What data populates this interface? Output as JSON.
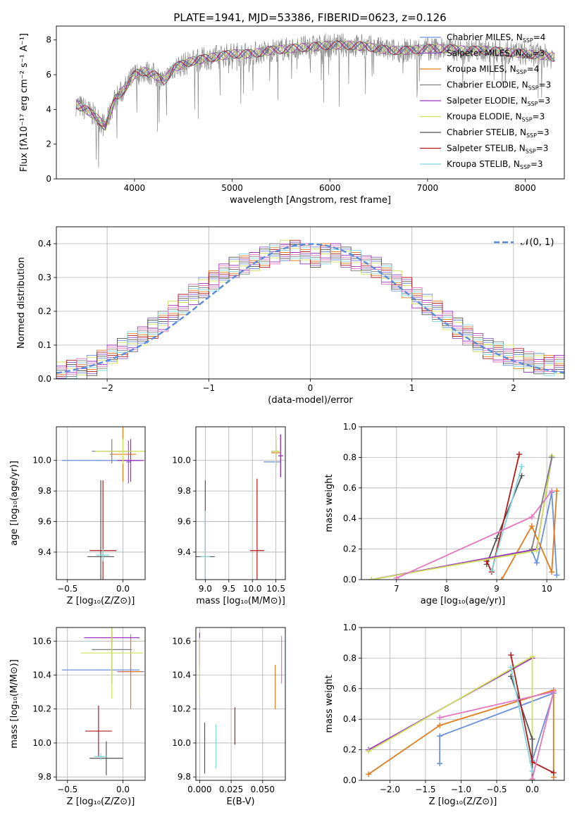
{
  "figure": {
    "title": "PLATE=1941, MJD=53386, FIBERID=0623, z=0.126"
  },
  "colors": {
    "Chabrier MILES": "#6a8fdc",
    "Salpeter MILES": "#8f5cc8",
    "Kroupa MILES": "#e07b1e",
    "Chabrier ELODIE": "#7f7f7f",
    "Salpeter ELODIE": "#9b30c0",
    "Kroupa ELODIE": "#cfe05a",
    "Chabrier STELIB": "#555555",
    "Salpeter STELIB": "#b11a1a",
    "Kroupa STELIB": "#7fd6de",
    "pink": "#e377c2",
    "normal_curve": "#5a8ad8"
  },
  "chart_data": [
    {
      "id": "spectrum",
      "type": "line",
      "xlabel": "wavelength [Angstrom, rest frame]",
      "ylabel": "Flux [fλ10⁻¹⁷ erg cm⁻² s⁻¹ A⁻¹]",
      "xlim": [
        3200,
        8400
      ],
      "ylim": [
        0,
        8.8
      ],
      "xticks": [
        "4000",
        "5000",
        "6000",
        "7000",
        "8000"
      ],
      "yticks": [
        "0",
        "2",
        "4",
        "6",
        "8"
      ],
      "legend_position": "upper-right",
      "legend": [
        {
          "label": "Chabrier MILES, N",
          "sub": "SSP",
          "tail": "=4"
        },
        {
          "label": "Salpeter MILES, N",
          "sub": "SSP",
          "tail": "=3"
        },
        {
          "label": "Kroupa MILES, N",
          "sub": "SSP",
          "tail": "=4"
        },
        {
          "label": "Chabrier ELODIE, N",
          "sub": "SSP",
          "tail": "=3"
        },
        {
          "label": "Salpeter ELODIE, N",
          "sub": "SSP",
          "tail": "=3"
        },
        {
          "label": "Kroupa ELODIE, N",
          "sub": "SSP",
          "tail": "=3"
        },
        {
          "label": "Chabrier STELIB, N",
          "sub": "SSP",
          "tail": "=3"
        },
        {
          "label": "Salpeter STELIB, N",
          "sub": "SSP",
          "tail": "=3"
        },
        {
          "label": "Kroupa STELIB, N",
          "sub": "SSP",
          "tail": "=3"
        }
      ],
      "data_series": [
        {
          "x": [
            3400,
            3500,
            3600,
            3700,
            3800,
            3900,
            4000,
            4100,
            4200,
            4300,
            4400,
            4600,
            4800,
            5000,
            5200,
            5400,
            5600,
            5800,
            6000,
            6200,
            6400,
            6600,
            6800,
            7000,
            7200,
            7400,
            7600,
            7800,
            8000,
            8200,
            8300
          ],
          "y": [
            4.3,
            4.0,
            3.6,
            3.0,
            4.6,
            5.2,
            6.0,
            6.2,
            6.0,
            5.6,
            6.4,
            6.8,
            7.0,
            7.2,
            7.2,
            7.4,
            7.5,
            7.6,
            7.7,
            7.7,
            7.6,
            7.4,
            7.4,
            7.5,
            7.5,
            7.4,
            7.4,
            7.3,
            7.2,
            7.1,
            7.0
          ]
        }
      ]
    },
    {
      "id": "residuals",
      "type": "line",
      "xlabel": "(data-model)/error",
      "ylabel": "Normed distribution",
      "xlim": [
        -2.5,
        2.5
      ],
      "ylim": [
        0,
        0.45
      ],
      "xticks": [
        "−2",
        "−1",
        "0",
        "1",
        "2"
      ],
      "yticks": [
        "0.0",
        "0.1",
        "0.2",
        "0.3",
        "0.4"
      ],
      "legend": "𝒩(0, 1)",
      "bin_width": 0.1,
      "hist_base": [
        0.02,
        0.025,
        0.03,
        0.04,
        0.055,
        0.07,
        0.09,
        0.11,
        0.13,
        0.15,
        0.17,
        0.2,
        0.22,
        0.25,
        0.27,
        0.29,
        0.31,
        0.33,
        0.34,
        0.35,
        0.36,
        0.37,
        0.38,
        0.38,
        0.37,
        0.36,
        0.37,
        0.37,
        0.36,
        0.35,
        0.34,
        0.33,
        0.31,
        0.29,
        0.27,
        0.24,
        0.22,
        0.2,
        0.17,
        0.15,
        0.13,
        0.11,
        0.09,
        0.08,
        0.07,
        0.06,
        0.05,
        0.045,
        0.04,
        0.04
      ]
    },
    {
      "id": "age_vs_Z",
      "type": "scatter",
      "xlabel": "Z [log₁₀(Z/Z⊙)]",
      "ylabel": "age  [log₁₀(age/yr)]",
      "xlim": [
        -0.6,
        0.2
      ],
      "ylim": [
        9.22,
        10.22
      ],
      "xticks": [
        "−0.5",
        "0.0"
      ],
      "yticks": [
        "9.4",
        "9.6",
        "9.8",
        "10.0"
      ],
      "points": [
        {
          "x": -0.2,
          "y": 10.0,
          "xerr": 0.35,
          "yerr": 0.0,
          "c": "Chabrier MILES"
        },
        {
          "x": 0.05,
          "y": 9.99,
          "xerr": 0.02,
          "yerr": 0.14,
          "c": "Salpeter MILES"
        },
        {
          "x": 0.0,
          "y": 10.04,
          "xerr": 0.12,
          "yerr": 0.18,
          "c": "Kroupa MILES"
        },
        {
          "x": -0.1,
          "y": 10.06,
          "xerr": 0.18,
          "yerr": 0.08,
          "c": "Chabrier ELODIE"
        },
        {
          "x": 0.07,
          "y": 10.0,
          "xerr": 0.12,
          "yerr": 0.14,
          "c": "Salpeter ELODIE"
        },
        {
          "x": 0.0,
          "y": 10.06,
          "xerr": 0.25,
          "yerr": 0.08,
          "c": "Kroupa ELODIE"
        },
        {
          "x": -0.2,
          "y": 9.37,
          "xerr": 0.12,
          "yerr": 0.5,
          "c": "Chabrier STELIB"
        },
        {
          "x": -0.18,
          "y": 9.41,
          "xerr": 0.12,
          "yerr": 0.46,
          "c": "Salpeter STELIB"
        },
        {
          "x": -0.18,
          "y": 9.38,
          "xerr": 0.06,
          "yerr": 0.04,
          "c": "Kroupa STELIB"
        }
      ]
    },
    {
      "id": "age_vs_mass",
      "type": "scatter",
      "xlabel": "mass [log₁₀(M/M⊙)]",
      "ylabel": "",
      "xlim": [
        8.8,
        10.7
      ],
      "ylim": [
        9.22,
        10.22
      ],
      "xticks": [
        "9.0",
        "9.5",
        "10.0",
        "10.5"
      ],
      "yticks": [
        "9.4",
        "9.6",
        "9.8",
        "10.0"
      ],
      "points": [
        {
          "x": 10.42,
          "y": 9.99,
          "xerr": 0.18,
          "yerr": 0.0,
          "c": "Chabrier MILES"
        },
        {
          "x": 10.6,
          "y": 10.03,
          "xerr": 0.05,
          "yerr": 0.14,
          "c": "Salpeter MILES"
        },
        {
          "x": 10.5,
          "y": 10.05,
          "xerr": 0.1,
          "yerr": 0.08,
          "c": "Kroupa MILES"
        },
        {
          "x": 10.5,
          "y": 10.06,
          "xerr": 0.1,
          "yerr": 0.1,
          "c": "Chabrier ELODIE"
        },
        {
          "x": 10.6,
          "y": 10.03,
          "xerr": 0.05,
          "yerr": 0.14,
          "c": "Salpeter ELODIE"
        },
        {
          "x": 10.5,
          "y": 10.06,
          "xerr": 0.1,
          "yerr": 0.1,
          "c": "Kroupa ELODIE"
        },
        {
          "x": 9.0,
          "y": 9.37,
          "xerr": 0.2,
          "yerr": 0.5,
          "c": "Chabrier STELIB"
        },
        {
          "x": 10.1,
          "y": 9.41,
          "xerr": 0.15,
          "yerr": 0.47,
          "c": "Salpeter STELIB"
        },
        {
          "x": 9.0,
          "y": 9.37,
          "xerr": 0.1,
          "yerr": 0.3,
          "c": "Kroupa STELIB"
        }
      ]
    },
    {
      "id": "weight_vs_age",
      "type": "line",
      "xlabel": "age  [log₁₀(age/yr)]",
      "ylabel": "mass weight",
      "xlim": [
        6.3,
        10.35
      ],
      "ylim": [
        0,
        1.0
      ],
      "xticks": [
        "7",
        "8",
        "9",
        "10"
      ],
      "yticks": [
        "0.0",
        "0.2",
        "0.4",
        "0.6",
        "0.8",
        "1.0"
      ],
      "series": [
        {
          "c": "Chabrier MILES",
          "x": [
            6.5,
            9.7,
            9.8,
            10.1,
            10.2
          ],
          "y": [
            0.0,
            0.19,
            0.11,
            0.57,
            0.03
          ]
        },
        {
          "c": "Kroupa MILES",
          "x": [
            9.1,
            9.7,
            10.1,
            10.2
          ],
          "y": [
            0.0,
            0.35,
            0.05,
            0.58
          ]
        },
        {
          "c": "Chabrier STELIB",
          "x": [
            8.8,
            9.0,
            9.5
          ],
          "y": [
            0.1,
            0.27,
            0.68
          ]
        },
        {
          "c": "Salpeter STELIB",
          "x": [
            8.8,
            8.9,
            9.45
          ],
          "y": [
            0.12,
            0.05,
            0.82
          ]
        },
        {
          "c": "Kroupa STELIB",
          "x": [
            8.9,
            9.5
          ],
          "y": [
            0.06,
            0.74
          ]
        },
        {
          "c": "Salpeter ELODIE",
          "x": [
            6.5,
            9.8,
            10.1
          ],
          "y": [
            0.0,
            0.2,
            0.8
          ]
        },
        {
          "c": "Kroupa ELODIE",
          "x": [
            6.5,
            9.8,
            10.1
          ],
          "y": [
            0.0,
            0.19,
            0.81
          ]
        },
        {
          "c": "pink",
          "x": [
            7.0,
            9.7,
            10.1
          ],
          "y": [
            0.01,
            0.41,
            0.58
          ]
        },
        {
          "c": "Chabrier ELODIE",
          "x": [
            9.7,
            10.1
          ],
          "y": [
            0.2,
            0.8
          ]
        }
      ]
    },
    {
      "id": "mass_vs_Z",
      "type": "scatter",
      "xlabel": "Z [log₁₀(Z/Z⊙)]",
      "ylabel": "mass [log₁₀(M/M⊙)]",
      "xlim": [
        -0.6,
        0.2
      ],
      "ylim": [
        9.78,
        10.68
      ],
      "xticks": [
        "−0.5",
        "0.0"
      ],
      "yticks": [
        "9.8",
        "10.0",
        "10.2",
        "10.4",
        "10.6"
      ],
      "points": [
        {
          "x": -0.2,
          "y": 10.43,
          "xerr": 0.35,
          "yerr": 0.0,
          "c": "Chabrier MILES"
        },
        {
          "x": 0.07,
          "y": 10.42,
          "xerr": 0.12,
          "yerr": 0.02,
          "c": "Salpeter MILES"
        },
        {
          "x": 0.07,
          "y": 10.42,
          "xerr": 0.1,
          "yerr": 0.22,
          "c": "Kroupa MILES"
        },
        {
          "x": -0.1,
          "y": 10.55,
          "xerr": 0.18,
          "yerr": 0.2,
          "c": "Chabrier ELODIE"
        },
        {
          "x": -0.1,
          "y": 10.62,
          "xerr": 0.25,
          "yerr": 0.04,
          "c": "Salpeter ELODIE"
        },
        {
          "x": -0.1,
          "y": 10.53,
          "xerr": 0.28,
          "yerr": 0.27,
          "c": "Kroupa ELODIE"
        },
        {
          "x": -0.15,
          "y": 9.91,
          "xerr": 0.15,
          "yerr": 0.1,
          "c": "Chabrier STELIB"
        },
        {
          "x": -0.22,
          "y": 10.07,
          "xerr": 0.12,
          "yerr": 0.15,
          "c": "Salpeter STELIB"
        },
        {
          "x": -0.2,
          "y": 9.92,
          "xerr": 0.06,
          "yerr": 0.02,
          "c": "Kroupa STELIB"
        }
      ]
    },
    {
      "id": "mass_vs_ebv",
      "type": "scatter",
      "xlabel": "E(B-V)",
      "ylabel": "",
      "xlim": [
        -0.003,
        0.068
      ],
      "ylim": [
        9.78,
        10.68
      ],
      "xticks": [
        "0.000",
        "0.025",
        "0.050"
      ],
      "yticks": [
        "9.8",
        "10.0",
        "10.2",
        "10.4",
        "10.6"
      ],
      "points": [
        {
          "x": 0.0,
          "y": 10.55,
          "xerr": 0.0,
          "yerr": 0.1,
          "c": "Salpeter ELODIE"
        },
        {
          "x": 0.0,
          "y": 10.45,
          "xerr": 0.0,
          "yerr": 0.17,
          "c": "Kroupa ELODIE"
        },
        {
          "x": 0.004,
          "y": 9.97,
          "xerr": 0.0,
          "yerr": 0.15,
          "c": "Chabrier STELIB"
        },
        {
          "x": 0.013,
          "y": 9.98,
          "xerr": 0.0,
          "yerr": 0.13,
          "c": "Kroupa STELIB"
        },
        {
          "x": 0.028,
          "y": 10.1,
          "xerr": 0.0,
          "yerr": 0.11,
          "c": "Salpeter STELIB"
        },
        {
          "x": 0.06,
          "y": 10.33,
          "xerr": 0.0,
          "yerr": 0.13,
          "c": "Kroupa MILES"
        },
        {
          "x": 0.065,
          "y": 10.49,
          "xerr": 0.0,
          "yerr": 0.14,
          "c": "pink"
        }
      ]
    },
    {
      "id": "weight_vs_Z",
      "type": "line",
      "xlabel": "Z [log₁₀(Z/Z⊙)]",
      "ylabel": "mass weight",
      "xlim": [
        -2.4,
        0.45
      ],
      "ylim": [
        0,
        1.0
      ],
      "xticks": [
        "−2.0",
        "−1.5",
        "−1.0",
        "−0.5",
        "0.0"
      ],
      "yticks": [
        "0.0",
        "0.2",
        "0.4",
        "0.6",
        "0.8",
        "1.0"
      ],
      "series": [
        {
          "c": "Chabrier MILES",
          "x": [
            -1.3,
            -1.3,
            0.3,
            0.0
          ],
          "y": [
            0.11,
            0.29,
            0.57,
            0.13
          ]
        },
        {
          "c": "Kroupa MILES",
          "x": [
            -2.3,
            -1.3,
            0.3,
            0.3
          ],
          "y": [
            0.04,
            0.36,
            0.59,
            0.02
          ]
        },
        {
          "c": "Salpeter ELODIE",
          "x": [
            -2.3,
            0.0
          ],
          "y": [
            0.2,
            0.8
          ]
        },
        {
          "c": "Kroupa ELODIE",
          "x": [
            -2.3,
            0.0,
            0.0
          ],
          "y": [
            0.19,
            0.81,
            0.0
          ]
        },
        {
          "c": "Chabrier STELIB",
          "x": [
            -0.3,
            0.0,
            0.0
          ],
          "y": [
            0.68,
            0.27,
            0.0
          ]
        },
        {
          "c": "Salpeter STELIB",
          "x": [
            -0.3,
            0.0,
            0.3
          ],
          "y": [
            0.82,
            0.12,
            0.05
          ]
        },
        {
          "c": "Kroupa STELIB",
          "x": [
            -0.3,
            0.0
          ],
          "y": [
            0.74,
            0.06
          ]
        },
        {
          "c": "pink",
          "x": [
            -1.3,
            0.3,
            0.0
          ],
          "y": [
            0.41,
            0.58,
            0.01
          ]
        }
      ]
    }
  ]
}
